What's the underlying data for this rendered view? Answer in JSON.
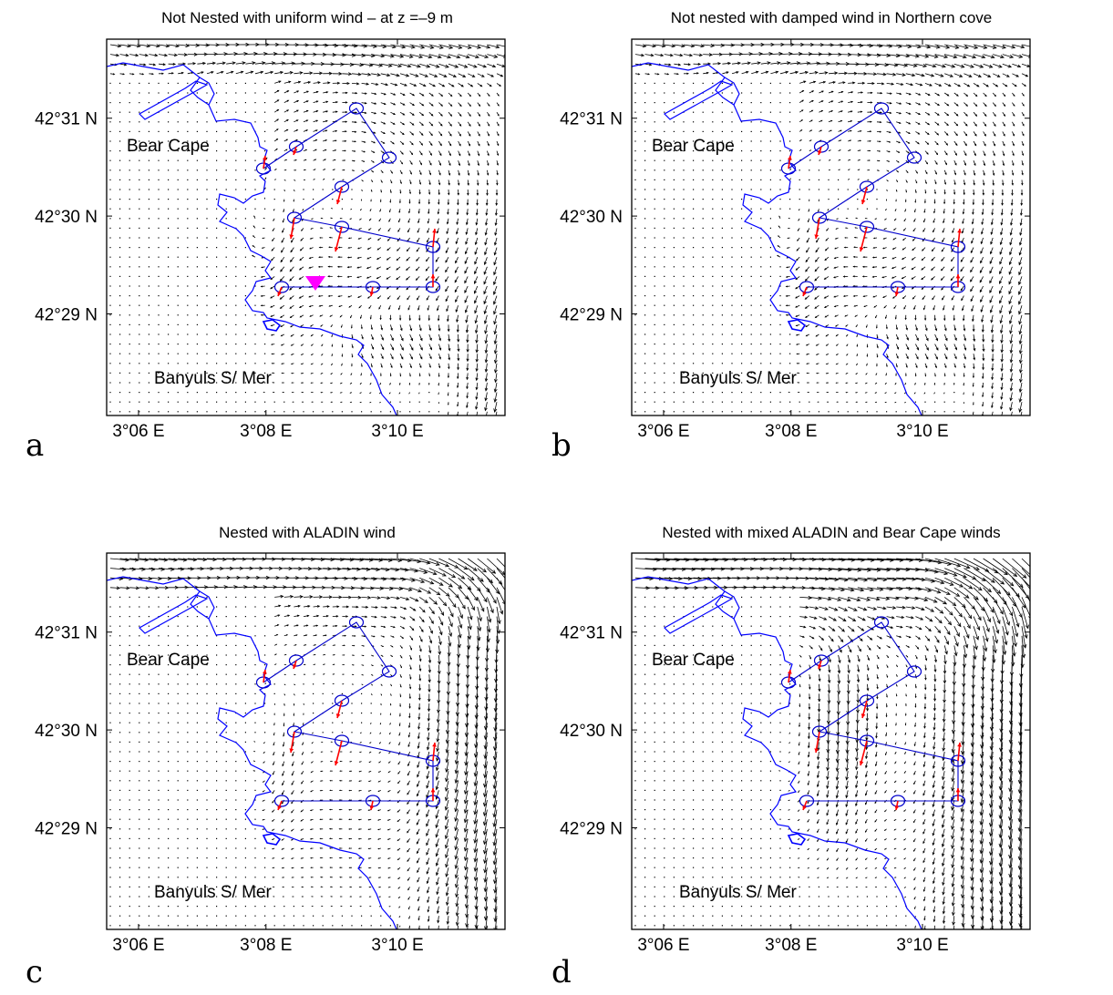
{
  "chart_data": [
    {
      "type": "map",
      "panel_label": "a",
      "title": "Not Nested with uniform wind – at z =–9 m",
      "x_ticks": [
        "3°06 E",
        "3°08 E",
        "3°10 E"
      ],
      "y_ticks": [
        "42°31 N",
        "42°30 N",
        "42°29 N"
      ],
      "places": [
        "Bear Cape",
        "Banyuls S/ Mer"
      ],
      "field_mode": "uniform",
      "marker": true
    },
    {
      "type": "map",
      "panel_label": "b",
      "title": "Not nested with damped wind in Northern cove",
      "x_ticks": [
        "3°06 E",
        "3°08 E",
        "3°10 E"
      ],
      "y_ticks": [
        "42°31 N",
        "42°30 N",
        "42°29 N"
      ],
      "places": [
        "Bear Cape",
        "Banyuls S/ Mer"
      ],
      "field_mode": "damped",
      "marker": false
    },
    {
      "type": "map",
      "panel_label": "c",
      "title": "Nested with ALADIN wind",
      "x_ticks": [
        "3°06 E",
        "3°08 E",
        "3°10 E"
      ],
      "y_ticks": [
        "42°31 N",
        "42°30 N",
        "42°29 N"
      ],
      "places": [
        "Bear Cape",
        "Banyuls S/ Mer"
      ],
      "field_mode": "aladin",
      "marker": false
    },
    {
      "type": "map",
      "panel_label": "d",
      "title": "Nested with mixed ALADIN and Bear Cape winds",
      "x_ticks": [
        "3°06 E",
        "3°08 E",
        "3°10 E"
      ],
      "y_ticks": [
        "42°31 N",
        "42°30 N",
        "42°29 N"
      ],
      "places": [
        "Bear Cape",
        "Banyuls S/ Mer"
      ],
      "field_mode": "mixed",
      "marker": false
    }
  ],
  "colors": {
    "coast": "#0000ff",
    "track": "#0000cc",
    "arrows": "#000000",
    "observed": "#ff0000",
    "marker": "#ff00ff"
  }
}
